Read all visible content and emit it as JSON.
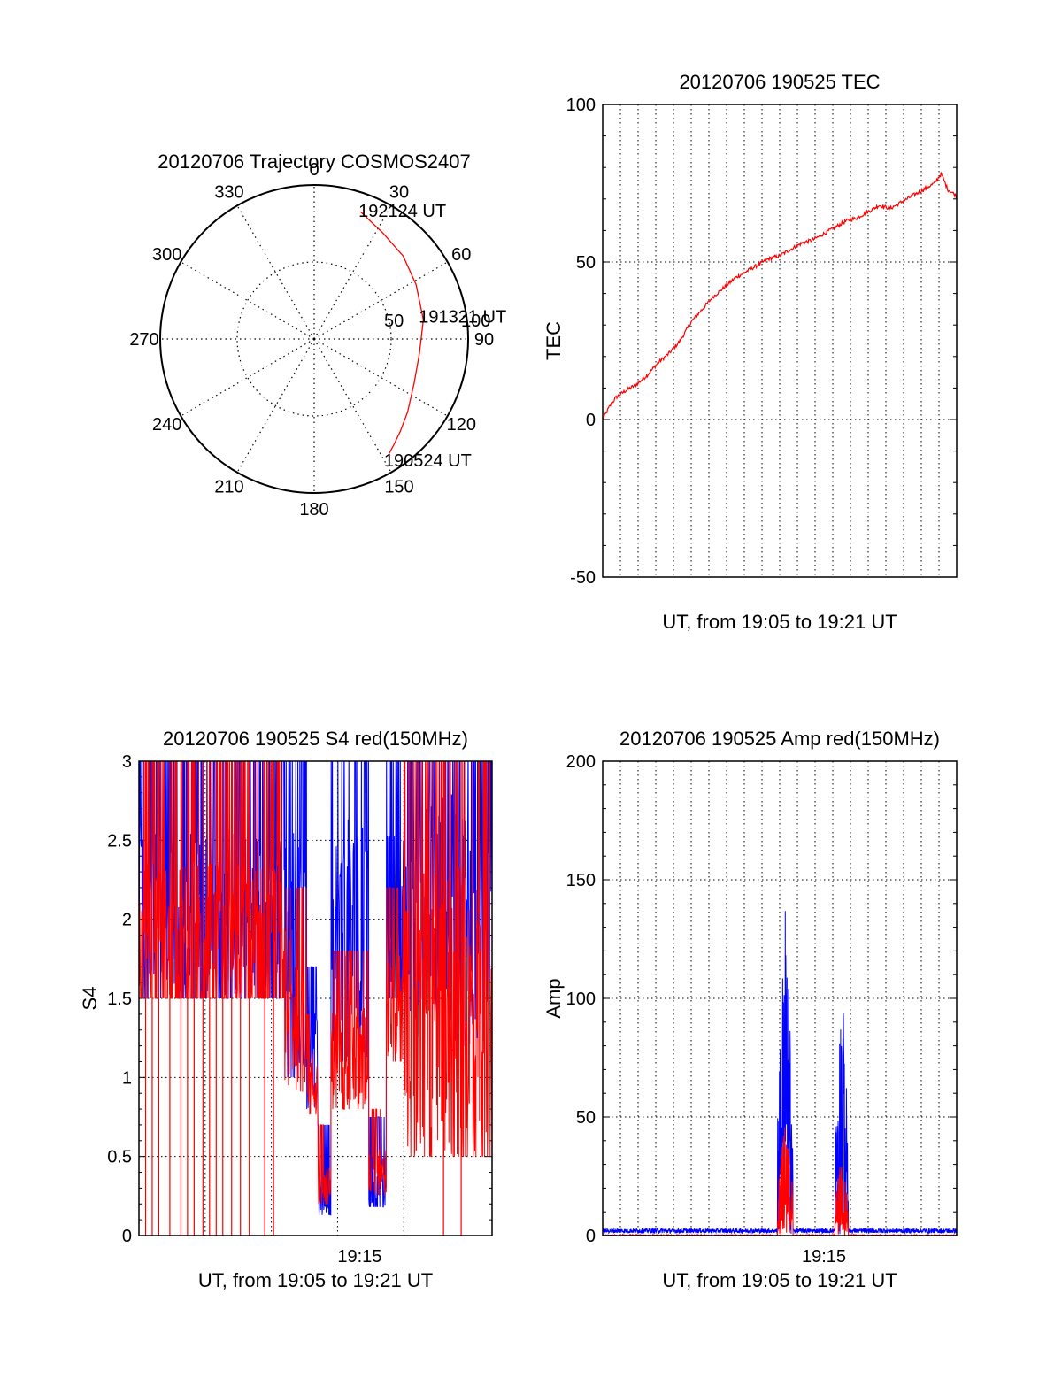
{
  "chart_data": [
    {
      "type": "polar",
      "title": "20120706 Trajectory COSMOS2407",
      "angle_labels": [
        "0",
        "30",
        "60",
        "90",
        "120",
        "150",
        "180",
        "210",
        "240",
        "270",
        "300",
        "330"
      ],
      "radial_labels": [
        "50",
        "100"
      ],
      "r_max": 100,
      "grid": true,
      "series": [
        {
          "color": "#ff0000",
          "points": [
            {
              "az": 20,
              "r": 88
            },
            {
              "az": 33,
              "r": 82
            },
            {
              "az": 47,
              "r": 79
            },
            {
              "az": 62,
              "r": 75
            },
            {
              "az": 80,
              "r": 72
            },
            {
              "az": 98,
              "r": 69
            },
            {
              "az": 114,
              "r": 71
            },
            {
              "az": 128,
              "r": 77
            },
            {
              "az": 137,
              "r": 82
            },
            {
              "az": 143,
              "r": 86
            },
            {
              "az": 147,
              "r": 89
            }
          ]
        }
      ],
      "annotations": [
        {
          "text": "192124 UT",
          "az": 21,
          "r": 90
        },
        {
          "text": "191321 UT",
          "az": 78,
          "r": 73
        },
        {
          "text": "190524 UT",
          "az": 148,
          "r": 92
        }
      ]
    },
    {
      "type": "line",
      "title": "20120706 190525 TEC",
      "xlabel": "UT, from 19:05 to 19:21 UT",
      "ylabel": "TEC",
      "xlim": [
        0,
        16
      ],
      "ylim": [
        -50,
        100
      ],
      "yticks": [
        -50,
        0,
        50,
        100
      ],
      "xticks": [],
      "vgrid_minutes": [
        0.8,
        1.6,
        2.4,
        3.2,
        4.0,
        4.8,
        5.6,
        6.4,
        7.2,
        8.0,
        8.8,
        9.6,
        10.4,
        11.2,
        12.0,
        12.8,
        13.6,
        14.4,
        15.2
      ],
      "grid": true,
      "series": [
        {
          "color": "#ff0000",
          "x": [
            0,
            0.3,
            0.6,
            1.0,
            1.5,
            2.0,
            2.5,
            3.0,
            3.5,
            4.0,
            4.5,
            5.0,
            5.5,
            6.0,
            6.5,
            7.0,
            7.5,
            8.0,
            8.5,
            9.0,
            9.5,
            10.0,
            10.5,
            11.0,
            11.5,
            12.0,
            12.5,
            13.0,
            13.5,
            14.0,
            14.5,
            15.0,
            15.3,
            15.6,
            16.0
          ],
          "y": [
            0,
            4,
            7,
            9,
            11,
            14,
            18,
            21,
            25,
            31,
            35,
            39,
            42,
            45,
            47,
            49,
            51,
            52,
            54,
            56,
            57,
            59,
            61,
            63,
            64,
            66,
            68,
            67,
            69,
            71,
            73,
            75,
            78,
            73,
            71
          ]
        }
      ]
    },
    {
      "type": "line",
      "title": "20120706 190525 S4 red(150MHz)",
      "xlabel": "UT, from 19:05 to 19:21 UT",
      "ylabel": "S4",
      "xlim": [
        0,
        16
      ],
      "ylim": [
        0,
        3
      ],
      "yticks": [
        0,
        0.5,
        1,
        1.5,
        2,
        2.5,
        3
      ],
      "ytick_labels": [
        "0",
        "0.5",
        "1",
        "1.5",
        "2",
        "2.5",
        "3"
      ],
      "xticks": [
        10
      ],
      "xtick_labels": [
        "19:15"
      ],
      "vgrid_minutes": [
        3,
        6,
        9,
        12
      ],
      "grid": true,
      "series": [
        {
          "color": "#0000ff",
          "segments": [
            {
              "x0": 0,
              "x1": 6.6,
              "lo": 1.5,
              "hi": 3.0,
              "base": 1.95
            },
            {
              "x0": 6.6,
              "x1": 7.6,
              "lo": 1.0,
              "hi": 3.0,
              "base": 1.7
            },
            {
              "x0": 7.6,
              "x1": 8.1,
              "lo": 0.8,
              "hi": 1.5,
              "base": 1.1
            },
            {
              "x0": 8.1,
              "x1": 8.7,
              "lo": 0.13,
              "hi": 0.5,
              "base": 0.22
            },
            {
              "x0": 8.7,
              "x1": 10.4,
              "lo": 1.1,
              "hi": 3.0,
              "base": 1.8
            },
            {
              "x0": 10.4,
              "x1": 11.2,
              "lo": 0.18,
              "hi": 0.55,
              "base": 0.25
            },
            {
              "x0": 11.2,
              "x1": 12.0,
              "lo": 1.5,
              "hi": 3.0,
              "base": 1.9
            },
            {
              "x0": 12.0,
              "x1": 16.0,
              "lo": 1.2,
              "hi": 3.0,
              "base": 2.0
            }
          ]
        },
        {
          "color": "#ff0000",
          "segments": [
            {
              "x0": 0,
              "x1": 6.6,
              "lo": 1.5,
              "hi": 3.0,
              "base": 1.7
            },
            {
              "x0": 6.6,
              "x1": 7.6,
              "lo": 0.9,
              "hi": 2.0,
              "base": 1.4
            },
            {
              "x0": 7.6,
              "x1": 8.1,
              "lo": 0.7,
              "hi": 1.2,
              "base": 0.95
            },
            {
              "x0": 8.1,
              "x1": 8.7,
              "lo": 0.2,
              "hi": 0.5,
              "base": 0.3
            },
            {
              "x0": 8.7,
              "x1": 10.4,
              "lo": 0.8,
              "hi": 1.6,
              "base": 1.1
            },
            {
              "x0": 10.4,
              "x1": 11.2,
              "lo": 0.25,
              "hi": 0.6,
              "base": 0.4
            },
            {
              "x0": 11.2,
              "x1": 12.0,
              "lo": 1.1,
              "hi": 2.0,
              "base": 1.4
            },
            {
              "x0": 12.0,
              "x1": 16.0,
              "lo": 0.5,
              "hi": 2.8,
              "base": 1.3
            }
          ],
          "drop_to_zero_minutes": [
            0.3,
            0.6,
            0.9,
            1.4,
            1.9,
            2.2,
            2.5,
            2.9,
            3.2,
            3.5,
            3.8,
            4.2,
            4.6,
            5.0,
            5.7,
            6.1,
            13.8,
            14.6
          ]
        }
      ]
    },
    {
      "type": "line",
      "title": "20120706 190525 Amp red(150MHz)",
      "xlabel": "UT, from 19:05 to 19:21 UT",
      "ylabel": "Amp",
      "xlim": [
        0,
        16
      ],
      "ylim": [
        0,
        200
      ],
      "yticks": [
        0,
        50,
        100,
        150,
        200
      ],
      "xticks": [
        10
      ],
      "xtick_labels": [
        "19:15"
      ],
      "vgrid_minutes": [
        0.8,
        1.6,
        2.4,
        3.2,
        4.0,
        4.8,
        5.6,
        6.4,
        7.2,
        8.0,
        8.8,
        9.6,
        10.4,
        11.2,
        12.0,
        12.8,
        13.6,
        14.4,
        15.2
      ],
      "grid": true,
      "series": [
        {
          "color": "#0000ff",
          "baseline": 2,
          "bursts": [
            {
              "x0": 7.9,
              "x1": 8.6,
              "peak": 143
            },
            {
              "x0": 10.5,
              "x1": 11.1,
              "peak": 113
            }
          ]
        },
        {
          "color": "#ff0000",
          "baseline": 0,
          "bursts": [
            {
              "x0": 7.9,
              "x1": 8.6,
              "peak": 50
            },
            {
              "x0": 10.5,
              "x1": 11.1,
              "peak": 35
            }
          ]
        }
      ]
    }
  ]
}
